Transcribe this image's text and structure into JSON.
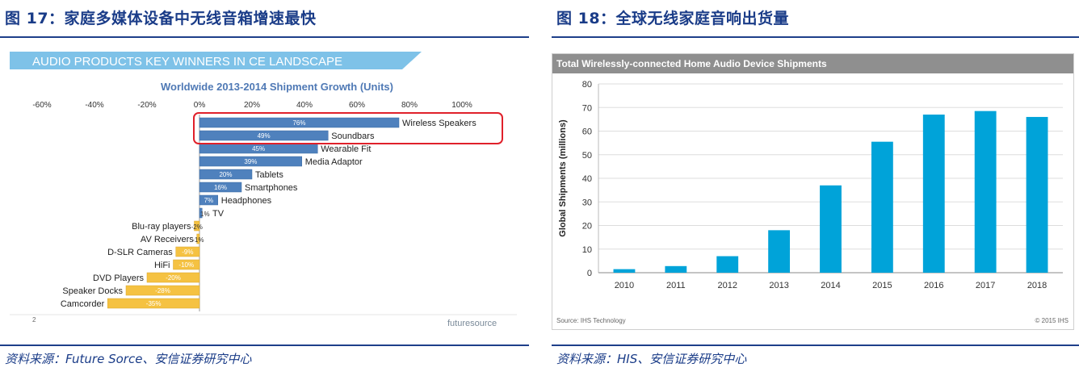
{
  "left": {
    "figure_title": "图 17：家庭多媒体设备中无线音箱增速最快",
    "source": "资料来源：Future Sorce、安信证券研究中心",
    "banner": "AUDIO PRODUCTS KEY WINNERS IN CE LANDSCAPE",
    "footer_page": "2",
    "logo_text": "futuresource"
  },
  "right": {
    "figure_title": "图 18：全球无线家庭音响出货量",
    "source": "资料来源：HIS、安信证券研究中心"
  },
  "chart_data": [
    {
      "type": "bar",
      "orientation": "horizontal",
      "title": "Worldwide 2013-2014 Shipment Growth (Units)",
      "xlim": [
        -60,
        100
      ],
      "xticks": [
        "-60%",
        "-40%",
        "-20%",
        "0%",
        "20%",
        "40%",
        "60%",
        "80%",
        "100%"
      ],
      "categories": [
        "Wireless Speakers",
        "Soundbars",
        "Wearable Fit",
        "Media Adaptor",
        "Tablets",
        "Smartphones",
        "Headphones",
        "TV",
        "Blu-ray players",
        "AV Receivers",
        "D-SLR Cameras",
        "HiFi",
        "DVD Players",
        "Speaker Docks",
        "Camcorder"
      ],
      "values": [
        76,
        49,
        45,
        39,
        20,
        16,
        7,
        1,
        -2,
        -1,
        -9,
        -10,
        -20,
        -28,
        -35
      ],
      "value_labels": [
        "76%",
        "49%",
        "45%",
        "39%",
        "20%",
        "16%",
        "7%",
        "1%",
        "-2%",
        "-1%",
        "-9%",
        "-10%",
        "-20%",
        "-28%",
        "-35%"
      ],
      "colors": {
        "positive": "#4f81bd",
        "negative": "#f5c242",
        "highlight": "#e0202a"
      },
      "highlighted": [
        "Wireless Speakers",
        "Soundbars"
      ]
    },
    {
      "type": "bar",
      "title": "Total Wirelessly-connected Home Audio Device Shipments",
      "categories": [
        "2010",
        "2011",
        "2012",
        "2013",
        "2014",
        "2015",
        "2016",
        "2017",
        "2018"
      ],
      "values": [
        1.5,
        2.8,
        7,
        18,
        37,
        55.5,
        67,
        68.5,
        66
      ],
      "ylabel": "Global Shipments (millions)",
      "ylim": [
        0,
        80
      ],
      "yticks": [
        0,
        10,
        20,
        30,
        40,
        50,
        60,
        70,
        80
      ],
      "grid": true,
      "color": "#00a3d9",
      "source_note": "Source: IHS Technology",
      "copyright": "© 2015 IHS"
    }
  ]
}
